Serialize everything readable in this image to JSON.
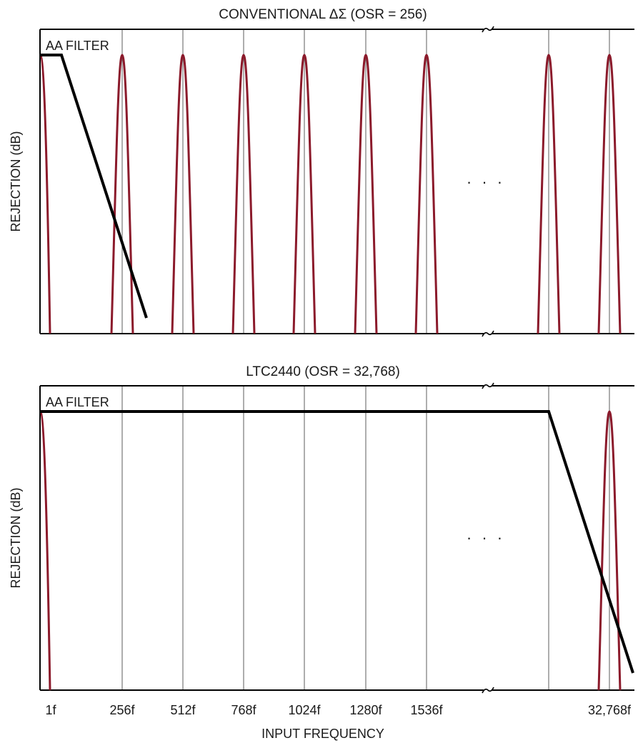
{
  "chart_data": [
    {
      "type": "line",
      "title": "CONVENTIONAL ΔΣ (OSR = 256)",
      "ylabel": "REJECTION (dB)",
      "xlabel": "",
      "annotation": "AA FILTER",
      "ellipsis": "· · ·",
      "axis_break": true,
      "notch_centers": [
        "1f",
        "256f",
        "512f",
        "768f",
        "1024f",
        "1280f",
        "1536f",
        "…",
        "…"
      ],
      "series": [
        {
          "kind": "notch",
          "color": "#8b1a2b"
        },
        {
          "kind": "aa_filter",
          "color": "#000000"
        }
      ]
    },
    {
      "type": "line",
      "title": "LTC2440 (OSR = 32,768)",
      "ylabel": "REJECTION (dB)",
      "xlabel": "INPUT FREQUENCY",
      "annotation": "AA FILTER",
      "ellipsis": "· · ·",
      "axis_break": true,
      "x_tick_labels": [
        "1f",
        "256f",
        "512f",
        "768f",
        "1024f",
        "1280f",
        "1536f",
        "32,768f"
      ],
      "notch_centers": [
        "1f",
        "32,768f"
      ],
      "series": [
        {
          "kind": "notch",
          "color": "#8b1a2b"
        },
        {
          "kind": "aa_filter",
          "color": "#000000"
        }
      ]
    }
  ]
}
